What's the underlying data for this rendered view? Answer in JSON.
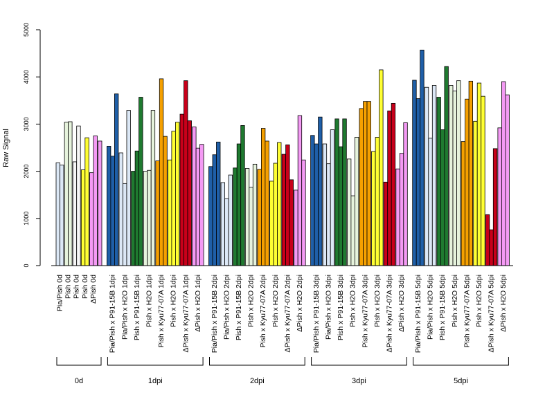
{
  "chart_data": {
    "type": "bar",
    "ylabel": "Raw Signal",
    "ylim": [
      0,
      5000
    ],
    "yticks": [
      0,
      1000,
      2000,
      3000,
      4000,
      5000
    ],
    "groups": [
      {
        "label": "0d",
        "categories": [
          {
            "label": "Pia/Pish 0d",
            "color": "#dce8f6",
            "values": [
              2180,
              2130
            ]
          },
          {
            "label": "Pish 0d",
            "color": "#e6f3dc",
            "values": [
              3040,
              3050
            ]
          },
          {
            "label": "Pish 0d",
            "color": "#f6f6f6",
            "values": [
              2200,
              2960
            ]
          },
          {
            "label": "Pish 0d",
            "color": "#ffff33",
            "values": [
              2030,
              2710
            ]
          },
          {
            "label": "ΔPish 0d",
            "color": "#f49af4",
            "values": [
              1970,
              2750
            ]
          },
          {
            "label": "",
            "color": "#f49af4",
            "values": [
              2640
            ]
          }
        ]
      },
      {
        "label": "1dpi",
        "categories": [
          {
            "label": "Pia/Pish x P91-15B 1dpi",
            "color": "#1f5fa8",
            "values": [
              2530,
              2320,
              3640
            ]
          },
          {
            "label": "Pia/Pish x H2O 1dpi",
            "color": "#dce8f6",
            "values": [
              2390,
              1740,
              3290
            ]
          },
          {
            "label": "Pish x P91-15B 1dpi",
            "color": "#1f7a30",
            "values": [
              2000,
              2430,
              3570
            ]
          },
          {
            "label": "Pish x H2O 1dpi",
            "color": "#e6f3dc",
            "values": [
              2000,
              2020,
              3290
            ]
          },
          {
            "label": "Pish x Kyu77-07A 1dpi",
            "color": "#f5a000",
            "values": [
              2220,
              3960,
              2740
            ]
          },
          {
            "label": "Pish x H2O 1dpi",
            "color": "#ffff33",
            "values": [
              2240,
              2850,
              3040
            ]
          },
          {
            "label": "ΔPish x Kyu77-07A 1dpi",
            "color": "#c8001a",
            "values": [
              3210,
              3920,
              3070
            ]
          },
          {
            "label": "ΔPish x H2O 1dpi",
            "color": "#f49af4",
            "values": [
              2940,
              2490,
              2570
            ]
          }
        ]
      },
      {
        "label": "2dpi",
        "categories": [
          {
            "label": "Pia/Pish x P91-15B 2dpi",
            "color": "#1f5fa8",
            "values": [
              2100,
              2350,
              2620
            ]
          },
          {
            "label": "Pia/Pish x H2O 2dpi",
            "color": "#dce8f6",
            "values": [
              1760,
              1420,
              1920
            ]
          },
          {
            "label": "Pish x P91-15B 2dpi",
            "color": "#1f7a30",
            "values": [
              2070,
              2580,
              2970
            ]
          },
          {
            "label": "Pish x H2O 2dpi",
            "color": "#e6f3dc",
            "values": [
              2060,
              1660,
              2150
            ]
          },
          {
            "label": "Pish x Kyu77-07A 2dpi",
            "color": "#f5a000",
            "values": [
              2040,
              2910,
              2640
            ]
          },
          {
            "label": "Pish x H2O 2dpi",
            "color": "#ffff33",
            "values": [
              1790,
              2170,
              2610
            ]
          },
          {
            "label": "ΔPish x Kyu77-07A 2dpi",
            "color": "#c8001a",
            "values": [
              2360,
              2560,
              1820
            ]
          },
          {
            "label": "ΔPish x H2O 2dpi",
            "color": "#f49af4",
            "values": [
              1600,
              3180,
              2240
            ]
          }
        ]
      },
      {
        "label": "3dpi",
        "categories": [
          {
            "label": "Pia/Pish x P91-15B 3dpi",
            "color": "#1f5fa8",
            "values": [
              2760,
              2580,
              3150
            ]
          },
          {
            "label": "Pia/Pish x H2O 3dpi",
            "color": "#dce8f6",
            "values": [
              2580,
              2160,
              2880
            ]
          },
          {
            "label": "Pish x P91-15B 3dpi",
            "color": "#1f7a30",
            "values": [
              3110,
              2520,
              3110
            ]
          },
          {
            "label": "Pish x H2O 3dpi",
            "color": "#e6f3dc",
            "values": [
              2260,
              1480,
              2720
            ]
          },
          {
            "label": "Pish x Kyu77-07A 3dpi",
            "color": "#f5a000",
            "values": [
              3330,
              3480,
              3480
            ]
          },
          {
            "label": "Pish x H2O 3dpi",
            "color": "#ffff33",
            "values": [
              2420,
              2720,
              4150
            ]
          },
          {
            "label": "ΔPish x Kyu77-07A 3dpi",
            "color": "#c8001a",
            "values": [
              1770,
              3280,
              3440
            ]
          },
          {
            "label": "ΔPish x H2O 3dpi",
            "color": "#f49af4",
            "values": [
              2050,
              2380,
              3030
            ]
          }
        ]
      },
      {
        "label": "5dpi",
        "categories": [
          {
            "label": "Pia/Pish x P91-15B 5dpi",
            "color": "#1f5fa8",
            "values": [
              3930,
              3540,
              4570
            ]
          },
          {
            "label": "Pia/Pish x H2O 5dpi",
            "color": "#dce8f6",
            "values": [
              3780,
              2700,
              3820
            ]
          },
          {
            "label": "Pish x P91-15B 5dpi",
            "color": "#1f7a30",
            "values": [
              3570,
              2880,
              4220
            ]
          },
          {
            "label": "Pish x H2O 5dpi",
            "color": "#e6f3dc",
            "values": [
              3820,
              3700,
              3920
            ]
          },
          {
            "label": "Pish x Kyu77-07A 5dpi",
            "color": "#f5a000",
            "values": [
              2630,
              3530,
              3910
            ]
          },
          {
            "label": "Pish x H2O 5dpi",
            "color": "#ffff33",
            "values": [
              3060,
              3870,
              3590
            ]
          },
          {
            "label": "ΔPish x Kyu77-07A 5dpi",
            "color": "#c8001a",
            "values": [
              1080,
              760,
              2480
            ]
          },
          {
            "label": "ΔPish x H2O 5dpi",
            "color": "#f49af4",
            "values": [
              2920,
              3900,
              3620
            ]
          }
        ]
      }
    ],
    "grid": false,
    "legend": "none"
  }
}
